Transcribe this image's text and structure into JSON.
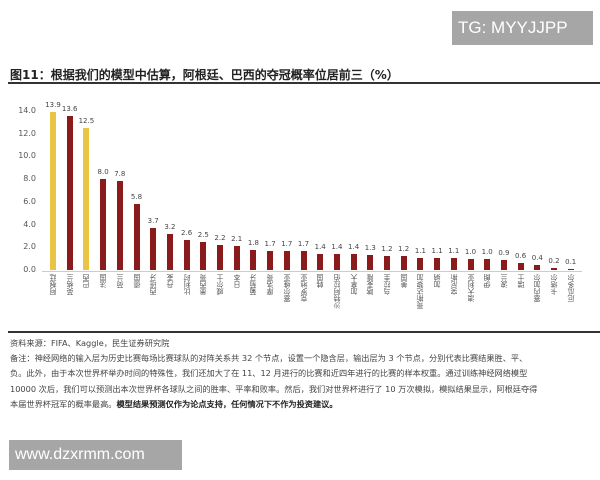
{
  "watermarks": {
    "top": "TG: MYYJJPP",
    "bottom": "www.dzxrmm.com"
  },
  "figure": {
    "title": "图11：根据我们的模型中估算，阿根廷、巴西的夺冠概率位居前三（%）"
  },
  "colors": {
    "highlight": "#e8c547",
    "default": "#8b1a1a"
  },
  "chart_data": {
    "type": "bar",
    "title": "图11：根据我们的模型中估算，阿根廷、巴西的夺冠概率位居前三（%）",
    "xlabel": "",
    "ylabel": "%",
    "ylim": [
      0,
      14
    ],
    "yticks": [
      "0.0",
      "2.0",
      "4.0",
      "6.0",
      "8.0",
      "10.0",
      "12.0",
      "14.0"
    ],
    "grid": false,
    "legend": null,
    "categories": [
      "阿根廷",
      "英格兰",
      "巴西",
      "法国",
      "荷兰",
      "德国",
      "西班牙",
      "丹麦",
      "比利时",
      "墨西哥",
      "威尔士",
      "日本",
      "葡萄牙",
      "摩洛哥",
      "塞尔维亚",
      "克罗地亚",
      "韩国",
      "沙特阿拉伯",
      "加拿大",
      "喀麦隆",
      "乌拉圭",
      "美国",
      "哥斯达黎加",
      "加纳",
      "突尼斯",
      "澳大利亚",
      "伊朗",
      "波兰",
      "瑞士",
      "塞内加尔",
      "卡塔尔",
      "厄瓜多尔"
    ],
    "values": [
      13.9,
      13.6,
      12.5,
      8.0,
      7.8,
      5.8,
      3.7,
      3.2,
      2.6,
      2.5,
      2.2,
      2.1,
      1.8,
      1.7,
      1.7,
      1.7,
      1.4,
      1.4,
      1.4,
      1.3,
      1.2,
      1.2,
      1.1,
      1.1,
      1.1,
      1.0,
      1.0,
      0.9,
      0.6,
      0.4,
      0.2,
      0.1
    ],
    "value_labels": [
      "13.9",
      "13.6",
      "12.5",
      "8.0",
      "7.8",
      "5.8",
      "3.7",
      "3.2",
      "2.6",
      "2.5",
      "2.2",
      "2.1",
      "1.8",
      "1.7",
      "1.7",
      "1.7",
      "1.4",
      "1.4",
      "1.4",
      "1.3",
      "1.2",
      "1.2",
      "1.1",
      "1.1",
      "1.1",
      "1.0",
      "1.0",
      "0.9",
      "0.6",
      "0.4",
      "0.2",
      "0.1"
    ],
    "highlighted": [
      "阿根廷",
      "巴西"
    ]
  },
  "footer": {
    "source": "资料来源：FIFA、Kaggle，民生证券研究院",
    "note_line1": "备注：神经网络的输入层为历史比赛每场比赛球队的对阵关系共 32 个节点，设置一个隐含层，输出层为 3 个节点，分别代表比赛结果胜、平、",
    "note_line2": "负。此外，由于本次世界杯举办时间的特殊性，我们还加大了在 11、12 月进行的比赛和近四年进行的比赛的样本权重。通过训练神经网络模型",
    "note_line3": "10000 次后，我们可以预测出本次世界杯各球队之间的胜率、平率和败率。然后，我们对世界杯进行了 10 万次模拟，模拟结果显示，阿根廷夺得",
    "note_line4_plain": "本届世界杯冠军的概率最高。",
    "note_line4_bold": "模型结果预测仅作为论点支持，任何情况下不作为投资建议。"
  }
}
